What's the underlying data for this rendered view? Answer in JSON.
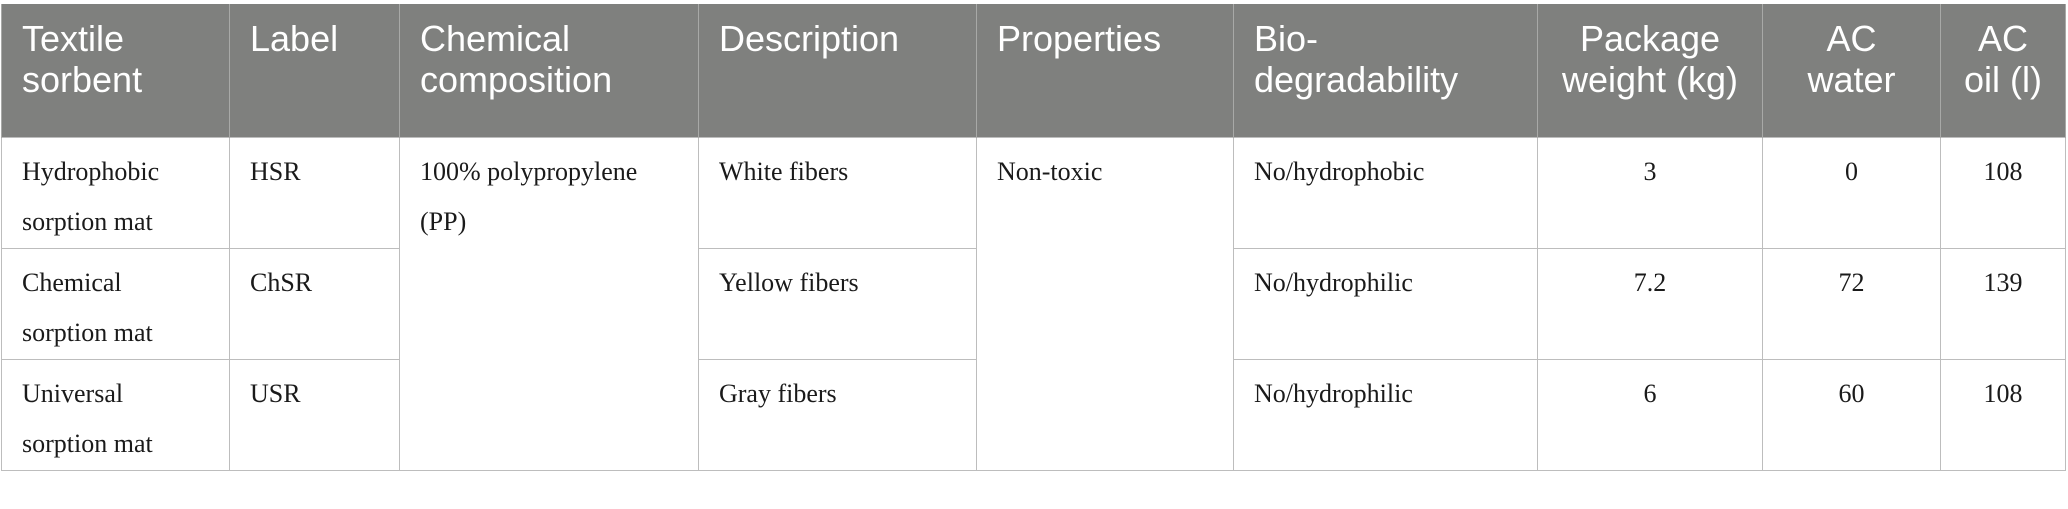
{
  "table": {
    "headers": [
      "Textile sorbent",
      "Label",
      "Chemical composition",
      "Description",
      "Properties",
      "Bio-degradability",
      "Package weight (kg)",
      "AC water",
      "AC oil (l)"
    ],
    "shared": {
      "chemical_composition": "100% polypropylene (PP)",
      "properties": "Non-toxic"
    },
    "rows": [
      {
        "sorbent": "Hydrophobic sorption mat",
        "label": "HSR",
        "description": "White fibers",
        "biodegradability": "No/hydrophobic",
        "package_weight": "3",
        "ac_water": "0",
        "ac_oil": "108"
      },
      {
        "sorbent": "Chemical sorption mat",
        "label": "ChSR",
        "description": "Yellow fibers",
        "biodegradability": "No/hydrophilic",
        "package_weight": "7.2",
        "ac_water": "72",
        "ac_oil": "139"
      },
      {
        "sorbent": "Universal sorption mat",
        "label": "USR",
        "description": "Gray fibers",
        "biodegradability": "No/hydrophilic",
        "package_weight": "6",
        "ac_water": "60",
        "ac_oil": "108"
      }
    ]
  }
}
